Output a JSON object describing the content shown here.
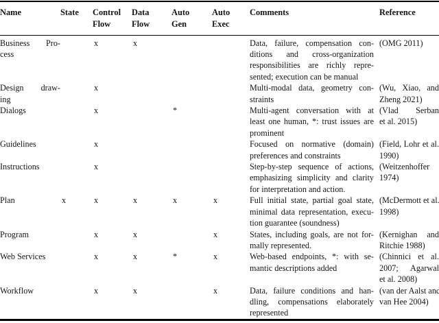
{
  "colors": {
    "background": "#ffffff",
    "text": "#151515",
    "rule": "#000000"
  },
  "table": {
    "columns": [
      {
        "key": "name",
        "label_lines": [
          "Name"
        ]
      },
      {
        "key": "state",
        "label_lines": [
          "State"
        ]
      },
      {
        "key": "control_flow",
        "label_lines": [
          "Control",
          "Flow"
        ]
      },
      {
        "key": "data_flow",
        "label_lines": [
          "Data",
          "Flow"
        ]
      },
      {
        "key": "auto_gen",
        "label_lines": [
          "Auto",
          "Gen"
        ]
      },
      {
        "key": "auto_exec",
        "label_lines": [
          "Auto",
          "Exec"
        ]
      },
      {
        "key": "comments",
        "label_lines": [
          "Comments"
        ]
      },
      {
        "key": "reference",
        "label_lines": [
          "Reference"
        ]
      }
    ],
    "rows": [
      {
        "name_lines": [
          "Business Pro-",
          "cess"
        ],
        "state": "",
        "control_flow": "x",
        "data_flow": "x",
        "auto_gen": "",
        "auto_exec": "",
        "comment_lines": [
          "Data, failure, compensation con-",
          "ditions and cross-organization",
          "responsibilities are richly repre-",
          "sented; execution can be manual"
        ],
        "reference_lines": [
          "(OMG 2011)"
        ]
      },
      {
        "name_lines": [
          "Design draw-",
          "ing"
        ],
        "state": "",
        "control_flow": "x",
        "data_flow": "",
        "auto_gen": "",
        "auto_exec": "",
        "comment_lines": [
          "Multi-modal data, geometry con-",
          "straints"
        ],
        "reference_lines": [
          "(Wu, Xiao, and",
          "Zheng 2021)"
        ]
      },
      {
        "name_lines": [
          "Dialogs"
        ],
        "state": "",
        "control_flow": "x",
        "data_flow": "",
        "auto_gen": "*",
        "auto_exec": "",
        "comment_lines": [
          "Multi-agent conversation with at",
          "least one human, *: trust issues are",
          "prominent"
        ],
        "reference_lines": [
          "(Vlad Serban",
          "et al. 2015)"
        ]
      },
      {
        "name_lines": [
          "Guidelines"
        ],
        "state": "",
        "control_flow": "x",
        "data_flow": "",
        "auto_gen": "",
        "auto_exec": "",
        "comment_lines": [
          "Focused on normative (domain)",
          "preferences and constraints"
        ],
        "reference_lines": [
          "(Field, Lohr et al.",
          "1990)"
        ]
      },
      {
        "name_lines": [
          "Instructions"
        ],
        "state": "",
        "control_flow": "x",
        "data_flow": "",
        "auto_gen": "",
        "auto_exec": "",
        "comment_lines": [
          "Step-by-step sequence of actions,",
          "emphasizing simplicity and clarity",
          "for interpretation and action."
        ],
        "reference_lines": [
          "(Weitzenhoffer",
          "1974)"
        ]
      },
      {
        "name_lines": [
          "Plan"
        ],
        "state": "x",
        "control_flow": "x",
        "data_flow": "x",
        "auto_gen": "x",
        "auto_exec": "x",
        "comment_lines": [
          "Full initial state, partial goal state,",
          "minimal data representation, execu-",
          "tion guarantee (soundness)"
        ],
        "reference_lines": [
          "(McDermott et al.",
          "1998)"
        ]
      },
      {
        "name_lines": [
          "Program"
        ],
        "state": "",
        "control_flow": "x",
        "data_flow": "x",
        "auto_gen": "",
        "auto_exec": "x",
        "comment_lines": [
          "States, including goals, are not for-",
          "mally represented."
        ],
        "reference_lines": [
          "(Kernighan and",
          "Ritchie 1988)"
        ]
      },
      {
        "name_lines": [
          "Web Services"
        ],
        "state": "",
        "control_flow": "x",
        "data_flow": "x",
        "auto_gen": "*",
        "auto_exec": "x",
        "comment_lines": [
          "Web-based endpoints, *: with se-",
          "mantic descriptions added"
        ],
        "reference_lines": [
          "(Chinnici et al.",
          "2007; Agarwal",
          "et al. 2008)"
        ]
      },
      {
        "name_lines": [
          "Workflow"
        ],
        "state": "",
        "control_flow": "x",
        "data_flow": "x",
        "auto_gen": "",
        "auto_exec": "x",
        "comment_lines": [
          "Data, failure conditions and han-",
          "dling, compensations elaborately",
          "represented"
        ],
        "reference_lines": [
          "(van der Aalst and",
          "van Hee 2004)"
        ]
      }
    ]
  }
}
